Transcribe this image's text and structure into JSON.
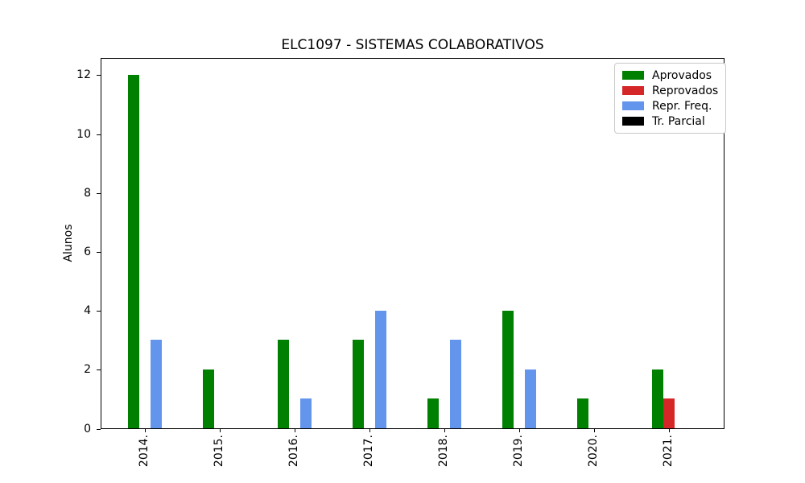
{
  "chart_data": {
    "type": "bar",
    "title": "ELC1097 - SISTEMAS COLABORATIVOS",
    "xlabel": "",
    "ylabel": "Alunos",
    "categories": [
      "2014.",
      "2015.",
      "2016.",
      "2017.",
      "2018.",
      "2019.",
      "2020.",
      "2021."
    ],
    "series": [
      {
        "name": "Aprovados",
        "color": "#008000",
        "values": [
          12,
          2,
          3,
          3,
          1,
          4,
          1,
          2
        ]
      },
      {
        "name": "Reprovados",
        "color": "#d62728",
        "values": [
          0,
          0,
          0,
          0,
          0,
          0,
          0,
          1
        ]
      },
      {
        "name": "Repr. Freq.",
        "color": "#6495ed",
        "values": [
          3,
          0,
          1,
          4,
          3,
          2,
          0,
          0
        ]
      },
      {
        "name": "Tr. Parcial",
        "color": "#000000",
        "values": [
          0,
          0,
          0,
          0,
          0,
          0,
          0,
          0
        ]
      }
    ],
    "yticks": [
      0,
      2,
      4,
      6,
      8,
      10,
      12
    ],
    "ylim": [
      0,
      12.6
    ],
    "grid": false,
    "legend_position": "upper right",
    "x_tick_rotation": 90
  }
}
